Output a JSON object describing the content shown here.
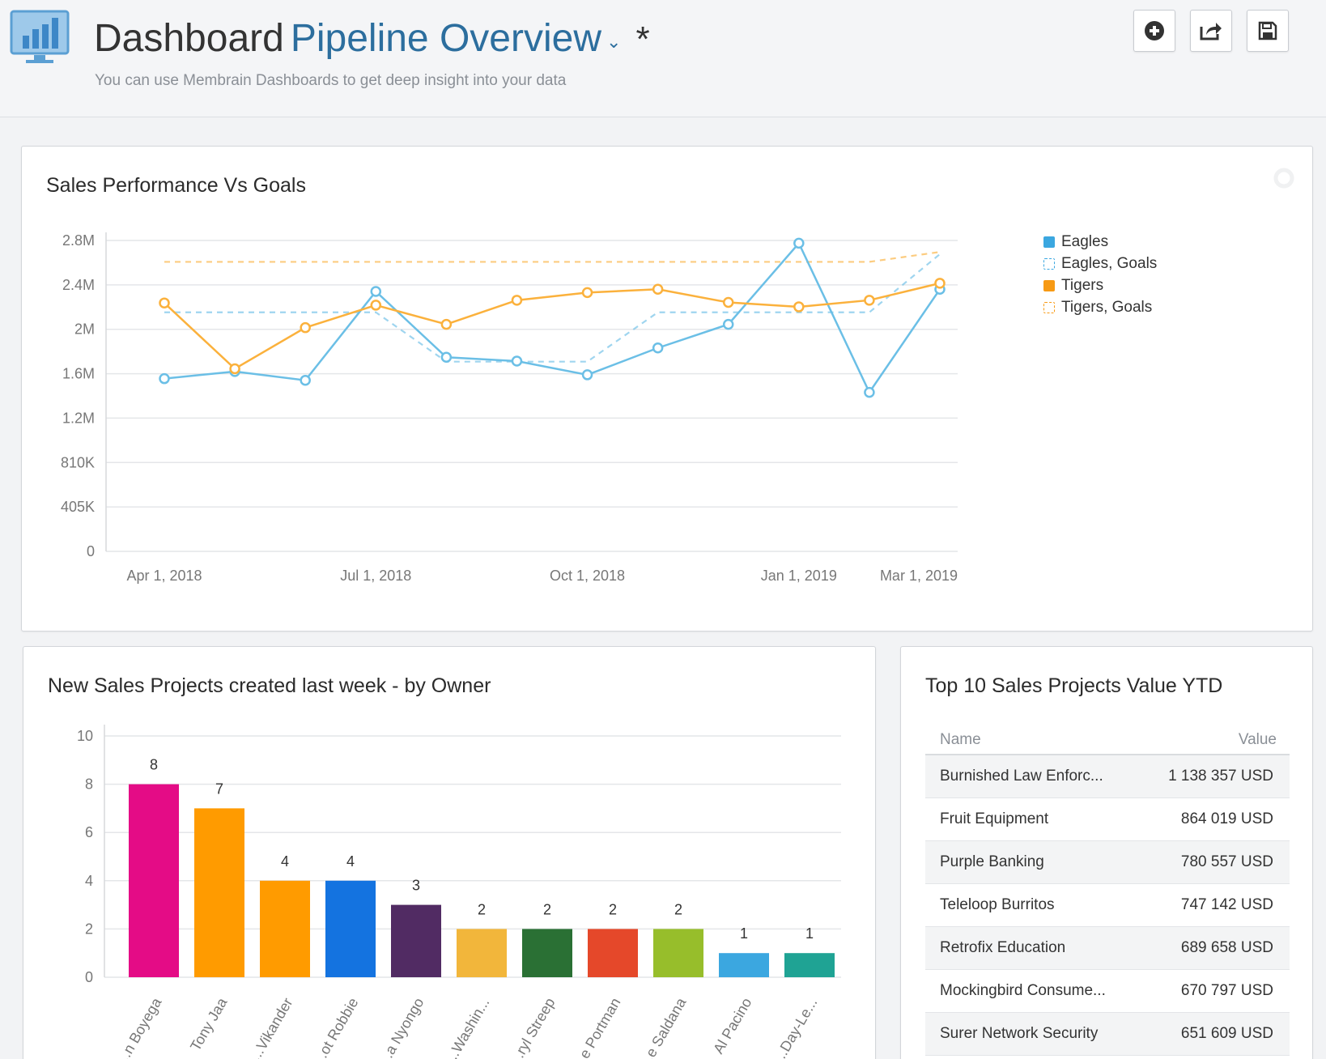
{
  "header": {
    "title_static": "Dashboard",
    "dashboard_name": "Pipeline Overview",
    "dirty_marker": "*",
    "subtitle": "You can use Membrain Dashboards to get deep insight into your data",
    "buttons": [
      "add-widget",
      "share",
      "save"
    ]
  },
  "panels": {
    "performance": {
      "title": "Sales Performance Vs Goals",
      "legend": [
        "Eagles",
        "Eagles, Goals",
        "Tigers",
        "Tigers, Goals"
      ]
    },
    "new_projects": {
      "title": "New Sales Projects created last week - by Owner"
    },
    "top10": {
      "title": "Top 10 Sales Projects Value YTD",
      "columns": {
        "name": "Name",
        "value": "Value"
      },
      "rows": [
        {
          "name": "Burnished Law Enforc...",
          "value": "1 138 357 USD"
        },
        {
          "name": "Fruit Equipment",
          "value": "864 019 USD"
        },
        {
          "name": "Purple Banking",
          "value": "780 557 USD"
        },
        {
          "name": "Teleloop Burritos",
          "value": "747 142 USD"
        },
        {
          "name": "Retrofix Education",
          "value": "689 658 USD"
        },
        {
          "name": "Mockingbird Consume...",
          "value": "670 797 USD"
        },
        {
          "name": "Surer Network Security",
          "value": "651 609 USD"
        }
      ]
    }
  },
  "colors": {
    "eagles": "#6bbfe6",
    "tigers": "#fbb13c",
    "eagles_legend": "#3ba7e0",
    "tigers_legend": "#f79a14",
    "brand_title": "#2c6e9e"
  },
  "chart_data": [
    {
      "type": "line",
      "title": "Sales Performance Vs Goals",
      "x": [
        "2018-04-01",
        "2018-05-01",
        "2018-06-01",
        "2018-07-01",
        "2018-08-01",
        "2018-09-01",
        "2018-10-01",
        "2018-11-01",
        "2018-12-01",
        "2019-01-01",
        "2019-02-01",
        "2019-03-01"
      ],
      "x_tick_labels": [
        "Apr 1, 2018",
        "Jul 1, 2018",
        "Oct 1, 2018",
        "Jan 1, 2019",
        "Mar 1, 2019"
      ],
      "y_tick_labels": [
        "0",
        "405K",
        "810K",
        "1.2M",
        "1.6M",
        "2M",
        "2.4M",
        "2.8M"
      ],
      "ylim": [
        0,
        2835000
      ],
      "series": [
        {
          "name": "Eagles",
          "style": "solid",
          "markers": true,
          "values": [
            1575000,
            1640000,
            1560000,
            2370000,
            1770000,
            1735000,
            1610000,
            1855000,
            2070000,
            2810000,
            1450000,
            2390000
          ]
        },
        {
          "name": "Eagles, Goals",
          "style": "dashed",
          "markers": false,
          "values": [
            2180000,
            2180000,
            2180000,
            2180000,
            1730000,
            1730000,
            1730000,
            2180000,
            2180000,
            2180000,
            2180000,
            2710000
          ]
        },
        {
          "name": "Tigers",
          "style": "solid",
          "markers": true,
          "values": [
            2265000,
            1665000,
            2040000,
            2245000,
            2070000,
            2290000,
            2360000,
            2390000,
            2270000,
            2230000,
            2290000,
            2445000
          ]
        },
        {
          "name": "Tigers, Goals",
          "style": "dashed",
          "markers": false,
          "values": [
            2640000,
            2640000,
            2640000,
            2640000,
            2640000,
            2640000,
            2640000,
            2640000,
            2640000,
            2640000,
            2640000,
            2730000
          ]
        }
      ],
      "legend_position": "right",
      "grid": true
    },
    {
      "type": "bar",
      "title": "New Sales Projects created last week - by Owner",
      "categories": [
        "...n Boyega",
        "Tony Jaa",
        "...Vikander",
        "...ot Robbie",
        "...a Nyongo",
        "...Washin...",
        "...ryl Streep",
        "...e Portman",
        "...e Saldana",
        "Al Pacino",
        "...Day-Le..."
      ],
      "values": [
        8,
        7,
        4,
        4,
        3,
        2,
        2,
        2,
        2,
        1,
        1
      ],
      "colors": [
        "#e40c86",
        "#ff9b00",
        "#ff9b00",
        "#1473e0",
        "#512b63",
        "#f2b63b",
        "#2a7034",
        "#e5482a",
        "#97be2b",
        "#3ba7e0",
        "#1fa394"
      ],
      "ylim": [
        0,
        10
      ],
      "y_tick_labels": [
        "0",
        "2",
        "4",
        "6",
        "8",
        "10"
      ],
      "data_labels": true
    }
  ]
}
